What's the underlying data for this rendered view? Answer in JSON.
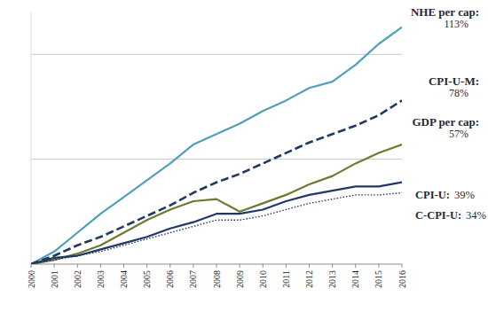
{
  "chart_data": {
    "type": "line",
    "x": [
      2000,
      2001,
      2002,
      2003,
      2004,
      2005,
      2006,
      2007,
      2008,
      2009,
      2010,
      2011,
      2012,
      2013,
      2014,
      2015,
      2016
    ],
    "xlim": [
      2000,
      2016
    ],
    "xticks": [
      2000,
      2001,
      2002,
      2003,
      2004,
      2005,
      2006,
      2007,
      2008,
      2009,
      2010,
      2011,
      2012,
      2013,
      2014,
      2015,
      2016
    ],
    "ylim": [
      0,
      120
    ],
    "yticks": [
      0,
      50,
      100
    ],
    "grid": true,
    "tick_labels": "x",
    "data_labels": true,
    "series": [
      {
        "name": "NHE per cap:",
        "color": "#4ea1b6",
        "line_style": "solid",
        "values": [
          0,
          6,
          15,
          24,
          32,
          40,
          48,
          57,
          62,
          67,
          73,
          78,
          84,
          87,
          95,
          105,
          113
        ],
        "value_labels": [
          null,
          null,
          null,
          null,
          null,
          null,
          null,
          null,
          null,
          null,
          null,
          null,
          null,
          null,
          null,
          null,
          "113%"
        ]
      },
      {
        "name": "CPI-U-M:",
        "color": "#1f3864",
        "line_style": "dashed",
        "values": [
          0,
          4,
          9,
          13,
          18,
          23,
          28,
          34,
          39,
          43,
          48,
          53,
          58,
          62,
          66,
          71,
          78
        ],
        "value_labels": [
          null,
          null,
          null,
          null,
          null,
          null,
          null,
          null,
          null,
          null,
          null,
          null,
          null,
          null,
          null,
          null,
          "78%"
        ]
      },
      {
        "name": "GDP per cap:",
        "color": "#6b7a2e",
        "line_style": "solid",
        "values": [
          0,
          2,
          5,
          9,
          15,
          21,
          26,
          30,
          31,
          25,
          29,
          33,
          38,
          42,
          48,
          53,
          57
        ],
        "value_labels": [
          null,
          null,
          null,
          null,
          null,
          null,
          null,
          null,
          null,
          null,
          null,
          null,
          null,
          null,
          null,
          null,
          "57%"
        ]
      },
      {
        "name": "CPI-U:",
        "color": "#1f3864",
        "line_style": "solid",
        "values": [
          0,
          3,
          4,
          7,
          10,
          13,
          17,
          20,
          24,
          24,
          26,
          30,
          33,
          35,
          37,
          37,
          39
        ],
        "value_labels": [
          null,
          null,
          null,
          null,
          null,
          null,
          null,
          null,
          null,
          null,
          null,
          null,
          null,
          null,
          null,
          null,
          "39%"
        ]
      },
      {
        "name": "C-CPI-U:",
        "color": "#1f3864",
        "line_style": "dotted",
        "values": [
          0,
          2,
          4,
          6,
          9,
          12,
          15,
          18,
          21,
          21,
          23,
          26,
          29,
          31,
          33,
          33,
          34
        ],
        "value_labels": [
          null,
          null,
          null,
          null,
          null,
          null,
          null,
          null,
          null,
          null,
          null,
          null,
          null,
          null,
          null,
          null,
          "34%"
        ]
      }
    ]
  }
}
